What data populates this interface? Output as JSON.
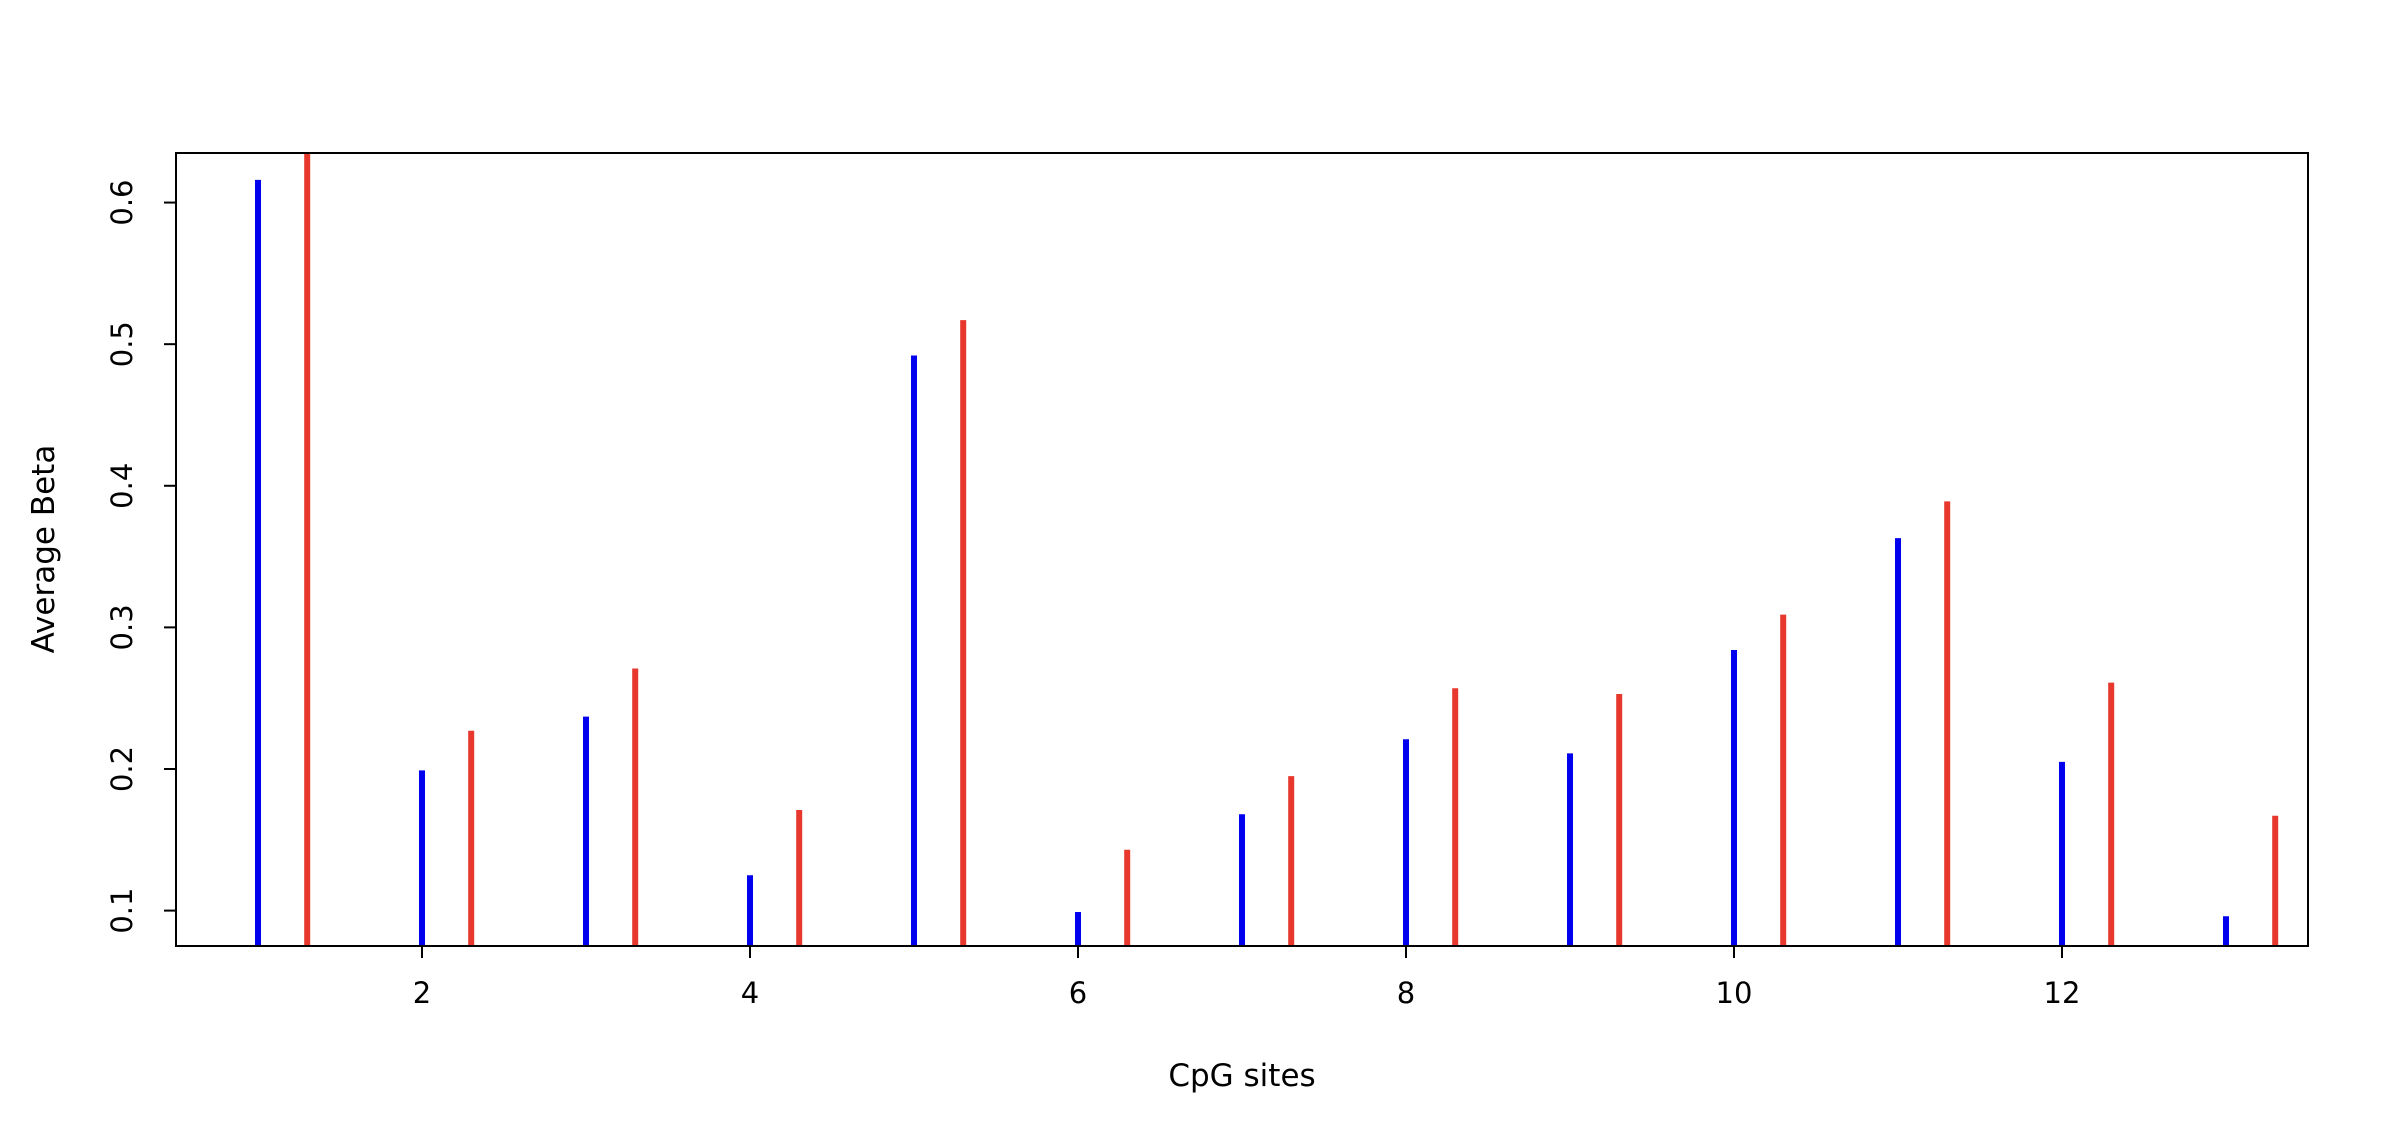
{
  "chart_data": {
    "type": "bar",
    "style": "vertical lines (histogram-style spikes)",
    "title": "",
    "xlabel": "CpG sites",
    "ylabel": "Average Beta",
    "xlim": [
      0.5,
      13.5
    ],
    "ylim": [
      0.075,
      0.635
    ],
    "x_ticks": [
      2,
      4,
      6,
      8,
      10,
      12
    ],
    "y_ticks": [
      0.1,
      0.2,
      0.3,
      0.4,
      0.5,
      0.6
    ],
    "x_offset_second_series": 0.3,
    "grid": false,
    "legend": "none",
    "x": [
      1,
      2,
      3,
      4,
      5,
      6,
      7,
      8,
      9,
      10,
      11,
      12,
      13
    ],
    "series": [
      {
        "color": "#0000ee",
        "values": [
          0.616,
          0.199,
          0.237,
          0.125,
          0.492,
          0.099,
          0.168,
          0.221,
          0.211,
          0.284,
          0.363,
          0.205,
          0.096
        ]
      },
      {
        "color": "#e8372c",
        "values": [
          0.635,
          0.227,
          0.271,
          0.171,
          0.517,
          0.143,
          0.195,
          0.257,
          0.253,
          0.309,
          0.389,
          0.261,
          0.167
        ]
      }
    ]
  }
}
